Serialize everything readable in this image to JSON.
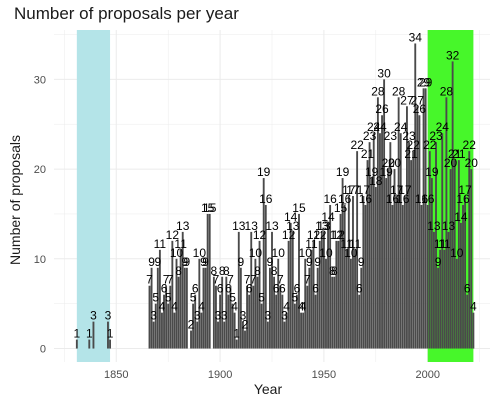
{
  "chart_data": {
    "type": "bar",
    "title": "Number of proposals per year",
    "xlabel": "Year",
    "ylabel": "Number of proposals",
    "xlim": [
      1820,
      2030
    ],
    "ylim": [
      -1.5,
      35.5
    ],
    "xticks": [
      1850,
      1900,
      1950,
      2000
    ],
    "yticks": [
      0,
      10,
      20,
      30
    ],
    "grid": true,
    "background_color": "#ffffff",
    "bar_color": "#4a4a4a",
    "label_color": "#000000",
    "shaded_regions": [
      {
        "x_start": 1831,
        "x_end": 1847,
        "color": "#b4e4e8"
      },
      {
        "x_start": 2000,
        "x_end": 2022,
        "color": "#47f72a"
      }
    ],
    "points": [
      {
        "x": 1831,
        "y": 1
      },
      {
        "x": 1837,
        "y": 1
      },
      {
        "x": 1839,
        "y": 3
      },
      {
        "x": 1846,
        "y": 3
      },
      {
        "x": 1847,
        "y": 1
      },
      {
        "x": 1866,
        "y": 7
      },
      {
        "x": 1867,
        "y": 9
      },
      {
        "x": 1868,
        "y": 3
      },
      {
        "x": 1869,
        "y": 5
      },
      {
        "x": 1870,
        "y": 9
      },
      {
        "x": 1871,
        "y": 11
      },
      {
        "x": 1872,
        "y": 4
      },
      {
        "x": 1873,
        "y": 6
      },
      {
        "x": 1874,
        "y": 7
      },
      {
        "x": 1875,
        "y": 5
      },
      {
        "x": 1876,
        "y": 7
      },
      {
        "x": 1877,
        "y": 12
      },
      {
        "x": 1878,
        "y": 4
      },
      {
        "x": 1879,
        "y": 10
      },
      {
        "x": 1880,
        "y": 8
      },
      {
        "x": 1881,
        "y": 11
      },
      {
        "x": 1882,
        "y": 13
      },
      {
        "x": 1883,
        "y": 9
      },
      {
        "x": 1884,
        "y": 9
      },
      {
        "x": 1886,
        "y": 2
      },
      {
        "x": 1887,
        "y": 5
      },
      {
        "x": 1888,
        "y": 6
      },
      {
        "x": 1889,
        "y": 3
      },
      {
        "x": 1890,
        "y": 10
      },
      {
        "x": 1891,
        "y": 4
      },
      {
        "x": 1892,
        "y": 9
      },
      {
        "x": 1893,
        "y": 9
      },
      {
        "x": 1894,
        "y": 15
      },
      {
        "x": 1895,
        "y": 15
      },
      {
        "x": 1897,
        "y": 8
      },
      {
        "x": 1898,
        "y": 7
      },
      {
        "x": 1899,
        "y": 3
      },
      {
        "x": 1900,
        "y": 6
      },
      {
        "x": 1901,
        "y": 8
      },
      {
        "x": 1902,
        "y": 3
      },
      {
        "x": 1903,
        "y": 8
      },
      {
        "x": 1904,
        "y": 6
      },
      {
        "x": 1905,
        "y": 7
      },
      {
        "x": 1906,
        "y": 5
      },
      {
        "x": 1907,
        "y": 4
      },
      {
        "x": 1908,
        "y": 1
      },
      {
        "x": 1909,
        "y": 13
      },
      {
        "x": 1910,
        "y": 9
      },
      {
        "x": 1911,
        "y": 3
      },
      {
        "x": 1912,
        "y": 2
      },
      {
        "x": 1913,
        "y": 7
      },
      {
        "x": 1914,
        "y": 6
      },
      {
        "x": 1915,
        "y": 13
      },
      {
        "x": 1916,
        "y": 7
      },
      {
        "x": 1917,
        "y": 10
      },
      {
        "x": 1918,
        "y": 8
      },
      {
        "x": 1919,
        "y": 12
      },
      {
        "x": 1920,
        "y": 5
      },
      {
        "x": 1921,
        "y": 19
      },
      {
        "x": 1922,
        "y": 16
      },
      {
        "x": 1923,
        "y": 3
      },
      {
        "x": 1924,
        "y": 9
      },
      {
        "x": 1925,
        "y": 13
      },
      {
        "x": 1926,
        "y": 8
      },
      {
        "x": 1927,
        "y": 6
      },
      {
        "x": 1928,
        "y": 10
      },
      {
        "x": 1929,
        "y": 7
      },
      {
        "x": 1930,
        "y": 6
      },
      {
        "x": 1931,
        "y": 3
      },
      {
        "x": 1932,
        "y": 4
      },
      {
        "x": 1933,
        "y": 12
      },
      {
        "x": 1934,
        "y": 14
      },
      {
        "x": 1935,
        "y": 13
      },
      {
        "x": 1936,
        "y": 5
      },
      {
        "x": 1937,
        "y": 6
      },
      {
        "x": 1938,
        "y": 15
      },
      {
        "x": 1939,
        "y": 4
      },
      {
        "x": 1940,
        "y": 4
      },
      {
        "x": 1941,
        "y": 10
      },
      {
        "x": 1942,
        "y": 7
      },
      {
        "x": 1943,
        "y": 9
      },
      {
        "x": 1944,
        "y": 11
      },
      {
        "x": 1945,
        "y": 12
      },
      {
        "x": 1946,
        "y": 6
      },
      {
        "x": 1947,
        "y": 9
      },
      {
        "x": 1948,
        "y": 12
      },
      {
        "x": 1949,
        "y": 13
      },
      {
        "x": 1950,
        "y": 13
      },
      {
        "x": 1951,
        "y": 10
      },
      {
        "x": 1952,
        "y": 14
      },
      {
        "x": 1953,
        "y": 16
      },
      {
        "x": 1954,
        "y": 8
      },
      {
        "x": 1955,
        "y": 8
      },
      {
        "x": 1956,
        "y": 12
      },
      {
        "x": 1957,
        "y": 12
      },
      {
        "x": 1958,
        "y": 15
      },
      {
        "x": 1959,
        "y": 19
      },
      {
        "x": 1960,
        "y": 16
      },
      {
        "x": 1961,
        "y": 11
      },
      {
        "x": 1962,
        "y": 17
      },
      {
        "x": 1963,
        "y": 10
      },
      {
        "x": 1964,
        "y": 17
      },
      {
        "x": 1965,
        "y": 11
      },
      {
        "x": 1966,
        "y": 22
      },
      {
        "x": 1967,
        "y": 6
      },
      {
        "x": 1968,
        "y": 9
      },
      {
        "x": 1969,
        "y": 17
      },
      {
        "x": 1970,
        "y": 16
      },
      {
        "x": 1971,
        "y": 21
      },
      {
        "x": 1972,
        "y": 23
      },
      {
        "x": 1973,
        "y": 19
      },
      {
        "x": 1974,
        "y": 24
      },
      {
        "x": 1975,
        "y": 18
      },
      {
        "x": 1976,
        "y": 28
      },
      {
        "x": 1977,
        "y": 24
      },
      {
        "x": 1978,
        "y": 26
      },
      {
        "x": 1979,
        "y": 30
      },
      {
        "x": 1980,
        "y": 19
      },
      {
        "x": 1981,
        "y": 20
      },
      {
        "x": 1982,
        "y": 23
      },
      {
        "x": 1983,
        "y": 16
      },
      {
        "x": 1984,
        "y": 20
      },
      {
        "x": 1985,
        "y": 17
      },
      {
        "x": 1986,
        "y": 28
      },
      {
        "x": 1987,
        "y": 24
      },
      {
        "x": 1988,
        "y": 16
      },
      {
        "x": 1989,
        "y": 17
      },
      {
        "x": 1990,
        "y": 27
      },
      {
        "x": 1991,
        "y": 23
      },
      {
        "x": 1992,
        "y": 21
      },
      {
        "x": 1993,
        "y": 22
      },
      {
        "x": 1994,
        "y": 34
      },
      {
        "x": 1995,
        "y": 27
      },
      {
        "x": 1996,
        "y": 26
      },
      {
        "x": 1997,
        "y": 16
      },
      {
        "x": 1998,
        "y": 29
      },
      {
        "x": 1999,
        "y": 29
      },
      {
        "x": 2000,
        "y": 16
      },
      {
        "x": 2001,
        "y": 22
      },
      {
        "x": 2002,
        "y": 19
      },
      {
        "x": 2003,
        "y": 13
      },
      {
        "x": 2004,
        "y": 23
      },
      {
        "x": 2005,
        "y": 9
      },
      {
        "x": 2006,
        "y": 11
      },
      {
        "x": 2007,
        "y": 24
      },
      {
        "x": 2008,
        "y": 11
      },
      {
        "x": 2009,
        "y": 28
      },
      {
        "x": 2010,
        "y": 13
      },
      {
        "x": 2011,
        "y": 20
      },
      {
        "x": 2012,
        "y": 32
      },
      {
        "x": 2013,
        "y": 21
      },
      {
        "x": 2014,
        "y": 10
      },
      {
        "x": 2015,
        "y": 21
      },
      {
        "x": 2016,
        "y": 14
      },
      {
        "x": 2017,
        "y": 16
      },
      {
        "x": 2018,
        "y": 17
      },
      {
        "x": 2019,
        "y": 6
      },
      {
        "x": 2020,
        "y": 22
      },
      {
        "x": 2021,
        "y": 20
      },
      {
        "x": 2022,
        "y": 4
      }
    ]
  }
}
